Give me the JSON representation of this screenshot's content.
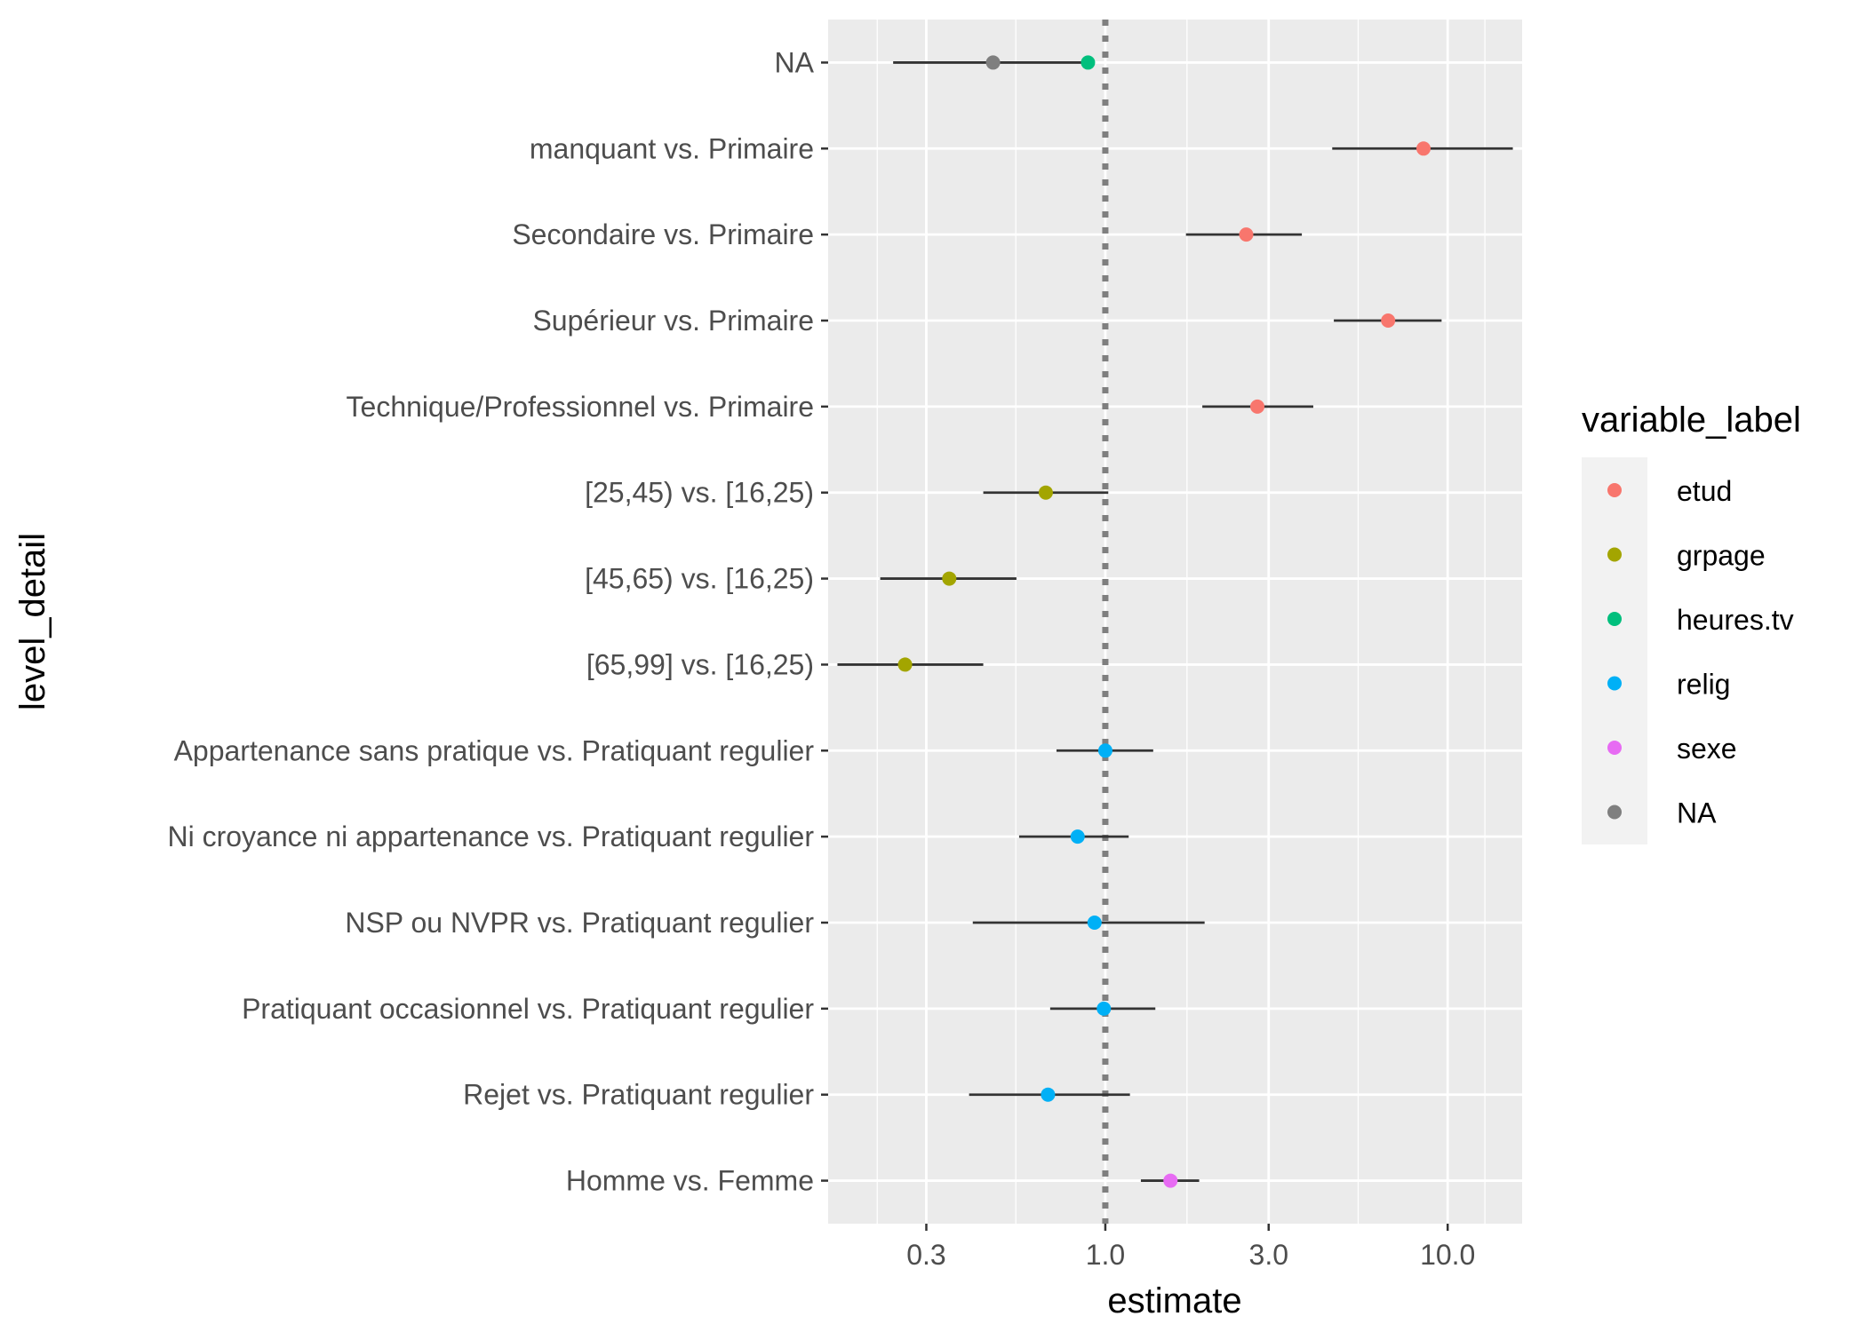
{
  "chart_data": {
    "type": "scatter",
    "xlabel": "estimate",
    "ylabel": "level_detail",
    "x_scale": "log10",
    "xlim": [
      0.155,
      16.5
    ],
    "x_ticks": [
      0.3,
      1.0,
      3.0,
      10.0
    ],
    "x_tick_labels": [
      "0.3",
      "1.0",
      "3.0",
      "10.0"
    ],
    "reference_line": {
      "x": 1.0,
      "style": "dotted",
      "color": "#7f7f7f"
    },
    "grid": true,
    "legend": {
      "title": "variable_label",
      "placement": "right",
      "entries": [
        {
          "label": "etud",
          "color": "#F8766D"
        },
        {
          "label": "grpage",
          "color": "#A3A500"
        },
        {
          "label": "heures.tv",
          "color": "#00BF7D"
        },
        {
          "label": "relig",
          "color": "#00B0F6"
        },
        {
          "label": "sexe",
          "color": "#E76BF3"
        },
        {
          "label": "NA",
          "color": "#7F7F7F"
        }
      ]
    },
    "categories": [
      "NA",
      "manquant vs. Primaire",
      "Secondaire vs. Primaire",
      "Supérieur vs. Primaire",
      "Technique/Professionnel vs. Primaire",
      "[25,45) vs. [16,25)",
      "[45,65) vs. [16,25)",
      "[65,99] vs. [16,25)",
      "Appartenance sans pratique vs. Pratiquant regulier",
      "Ni croyance ni appartenance vs. Pratiquant regulier",
      "NSP ou NVPR vs. Pratiquant regulier",
      "Pratiquant occasionnel vs. Pratiquant regulier",
      "Rejet vs. Pratiquant regulier",
      "Homme vs. Femme"
    ],
    "points": [
      {
        "row": 0,
        "series": "NA",
        "estimate": 0.47,
        "low": 0.24,
        "high": 0.92
      },
      {
        "row": 0,
        "series": "heures.tv",
        "estimate": 0.89,
        "low": 0.88,
        "high": 0.91
      },
      {
        "row": 1,
        "series": "etud",
        "estimate": 8.5,
        "low": 4.6,
        "high": 15.5
      },
      {
        "row": 2,
        "series": "etud",
        "estimate": 2.58,
        "low": 1.72,
        "high": 3.75
      },
      {
        "row": 3,
        "series": "etud",
        "estimate": 6.7,
        "low": 4.65,
        "high": 9.6
      },
      {
        "row": 4,
        "series": "etud",
        "estimate": 2.78,
        "low": 1.92,
        "high": 4.05
      },
      {
        "row": 5,
        "series": "grpage",
        "estimate": 0.67,
        "low": 0.44,
        "high": 1.02
      },
      {
        "row": 6,
        "series": "grpage",
        "estimate": 0.35,
        "low": 0.22,
        "high": 0.55
      },
      {
        "row": 7,
        "series": "grpage",
        "estimate": 0.26,
        "low": 0.165,
        "high": 0.44
      },
      {
        "row": 8,
        "series": "relig",
        "estimate": 1.0,
        "low": 0.72,
        "high": 1.38
      },
      {
        "row": 9,
        "series": "relig",
        "estimate": 0.83,
        "low": 0.56,
        "high": 1.17
      },
      {
        "row": 10,
        "series": "relig",
        "estimate": 0.93,
        "low": 0.41,
        "high": 1.95
      },
      {
        "row": 11,
        "series": "relig",
        "estimate": 0.99,
        "low": 0.69,
        "high": 1.4
      },
      {
        "row": 12,
        "series": "relig",
        "estimate": 0.68,
        "low": 0.4,
        "high": 1.18
      },
      {
        "row": 13,
        "series": "sexe",
        "estimate": 1.55,
        "low": 1.27,
        "high": 1.88
      }
    ]
  }
}
